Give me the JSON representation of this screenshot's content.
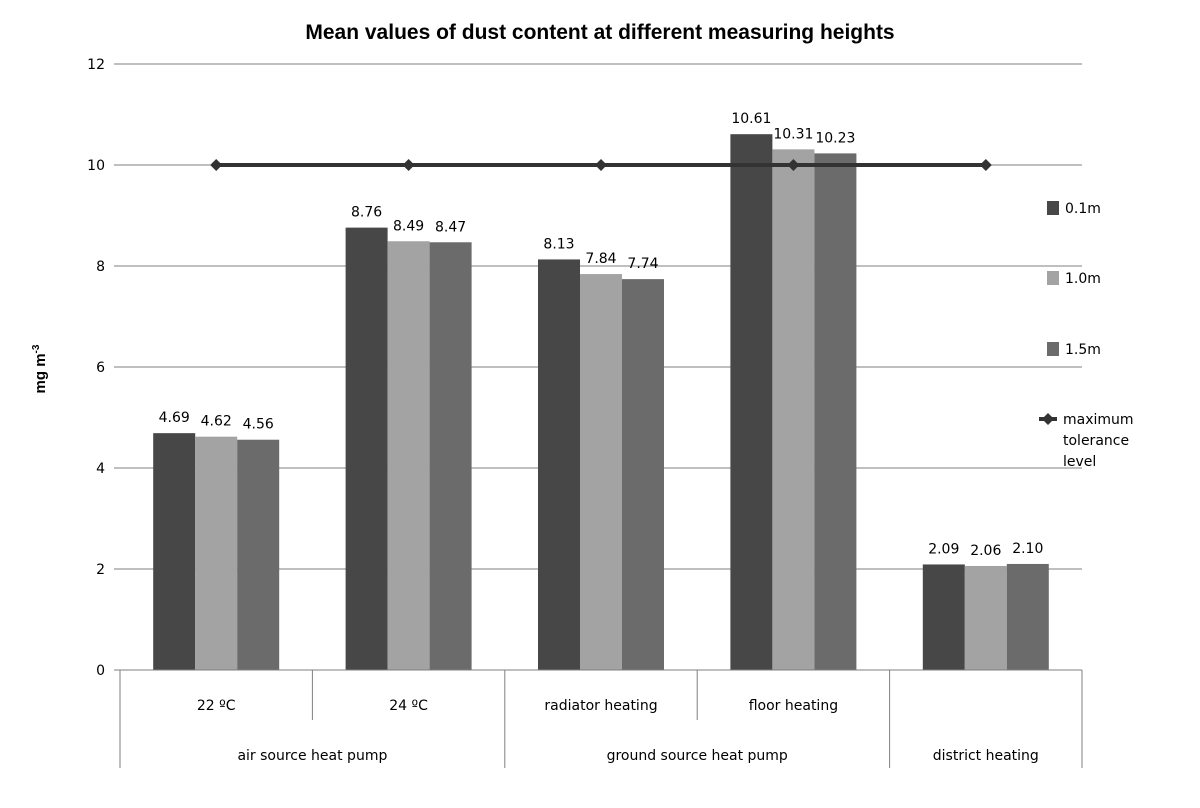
{
  "chart_data": {
    "type": "bar",
    "title": "Mean values of dust content at different measuring heights",
    "ylabel": "mg m",
    "ylabel_superscript": "-3",
    "ylim": [
      0,
      12
    ],
    "yticks": [
      0,
      2,
      4,
      6,
      8,
      10,
      12
    ],
    "grid": true,
    "legend_position": "right",
    "categories": [
      "22 ºC",
      "24 ºC",
      "radiator heating",
      "floor heating",
      ""
    ],
    "category_groups": [
      {
        "label": "air source heat pump",
        "span": 2
      },
      {
        "label": "ground source heat pump",
        "span": 2
      },
      {
        "label": "district heating",
        "span": 1
      }
    ],
    "series": [
      {
        "name": "0.1m",
        "color": "#474747",
        "values": [
          4.69,
          8.76,
          8.13,
          10.61,
          2.09
        ],
        "labels": [
          "4.69",
          "8.76",
          "8.13",
          "10.61",
          "2.09"
        ]
      },
      {
        "name": "1.0m",
        "color": "#a3a3a3",
        "values": [
          4.62,
          8.49,
          7.84,
          10.31,
          2.06
        ],
        "labels": [
          "4.62",
          "8.49",
          "7.84",
          "10.31",
          "2.06"
        ]
      },
      {
        "name": "1.5m",
        "color": "#6b6b6b",
        "values": [
          4.56,
          8.47,
          7.74,
          10.23,
          2.1
        ],
        "labels": [
          "4.56",
          "8.47",
          "7.74",
          "10.23",
          "2.10"
        ]
      }
    ],
    "reference_line": {
      "name_lines": [
        "maximum",
        "tolerance",
        "level"
      ],
      "value": 10,
      "color": "#333333",
      "marker": "diamond"
    }
  }
}
